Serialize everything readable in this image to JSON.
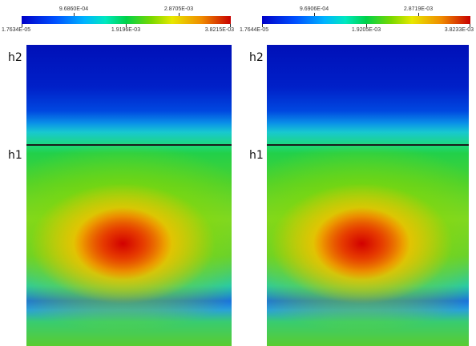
{
  "panels": [
    {
      "colorbar": {
        "top_labels": [
          "9.6860E-04",
          "2.8705E-03"
        ],
        "bottom_labels": [
          "1.7634E-05",
          "1.9196E-03",
          "3.8215E-03"
        ]
      },
      "layers": [
        "h2",
        "h1"
      ]
    },
    {
      "colorbar": {
        "top_labels": [
          "9.6906E-04",
          "2.8719E-03"
        ],
        "bottom_labels": [
          "1.7644E-05",
          "1.9205E-03",
          "3.8233E-03"
        ]
      },
      "layers": [
        "h2",
        "h1"
      ]
    }
  ],
  "colors": {
    "scale_low": "#0000c8",
    "scale_mid": "#00d24a",
    "scale_high": "#c80000",
    "interface_line": "#1a1a1a"
  }
}
